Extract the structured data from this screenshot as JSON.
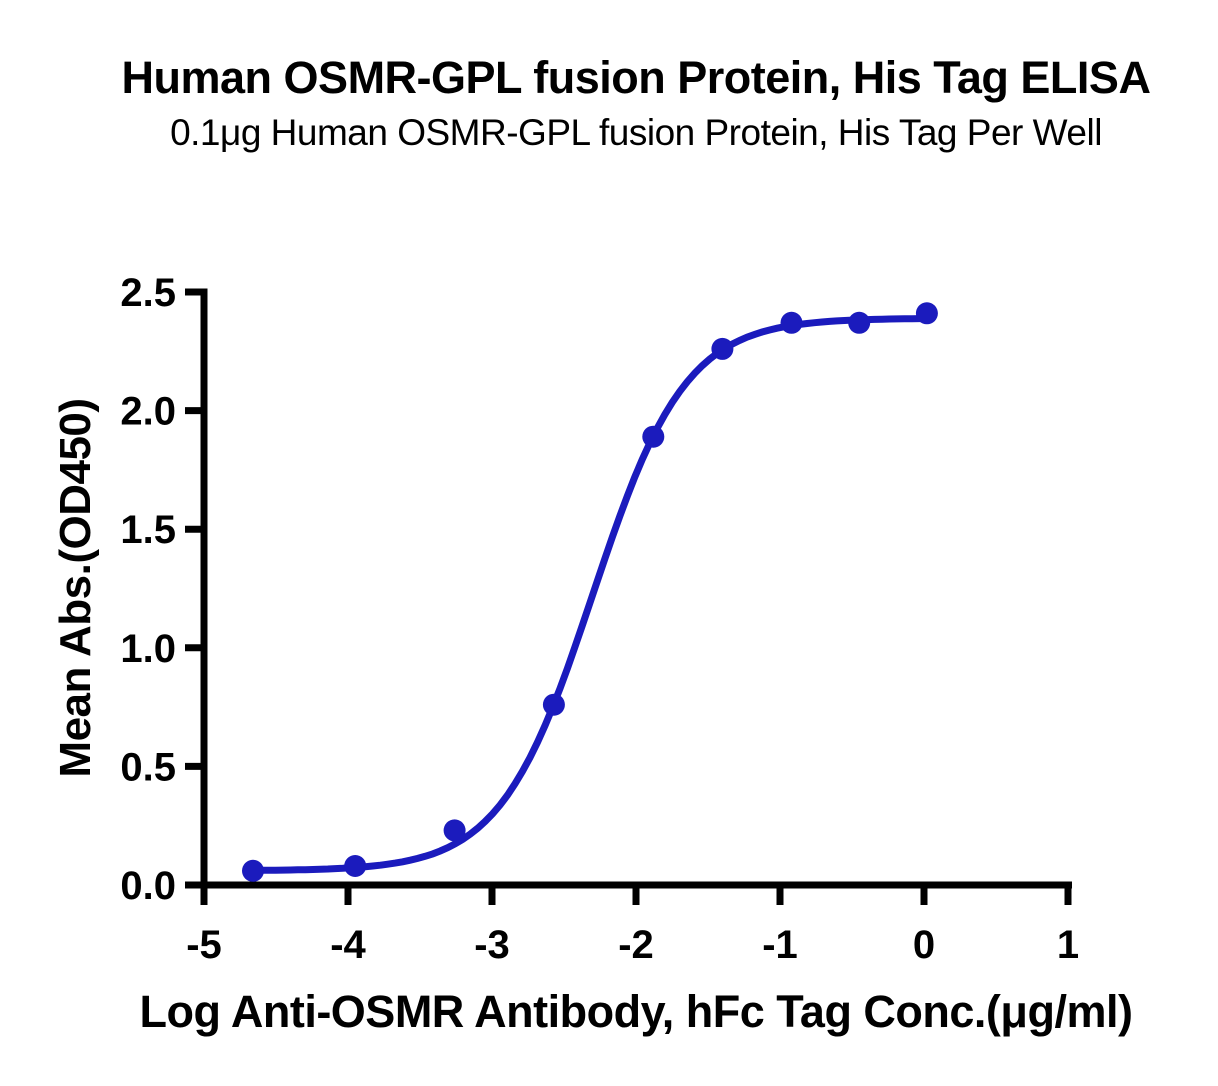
{
  "chart_data": {
    "type": "scatter",
    "title": "Human OSMR-GPL fusion Protein, His Tag ELISA",
    "subtitle": "0.1μg Human OSMR-GPL fusion Protein, His Tag Per Well",
    "xlabel": "Log Anti-OSMR Antibody, hFc Tag Conc.(μg/ml)",
    "ylabel": "Mean Abs.(OD450)",
    "series": [
      {
        "x": [
          -4.66,
          -3.95,
          -3.26,
          -2.57,
          -1.88,
          -1.4,
          -0.92,
          -0.45,
          0.02
        ],
        "y": [
          0.06,
          0.08,
          0.23,
          0.76,
          1.89,
          2.26,
          2.37,
          2.37,
          2.41
        ]
      }
    ],
    "curve_fit_4pl": {
      "bottom": 0.06,
      "top": 2.39,
      "log_ec50": -2.3,
      "hill": 1.35
    },
    "x_ticks": [
      "-5",
      "-4",
      "-3",
      "-2",
      "-1",
      "0",
      "1"
    ],
    "y_ticks": [
      "0.0",
      "0.5",
      "1.0",
      "1.5",
      "2.0",
      "2.5"
    ],
    "xlim": [
      -5,
      1
    ],
    "ylim": [
      0,
      2.5
    ],
    "grid": false,
    "legend": "none",
    "colors": {
      "line": "#1b1bbd",
      "marker": "#1b1bbd",
      "axis": "#000000",
      "text": "#000000",
      "background": "#ffffff"
    }
  }
}
